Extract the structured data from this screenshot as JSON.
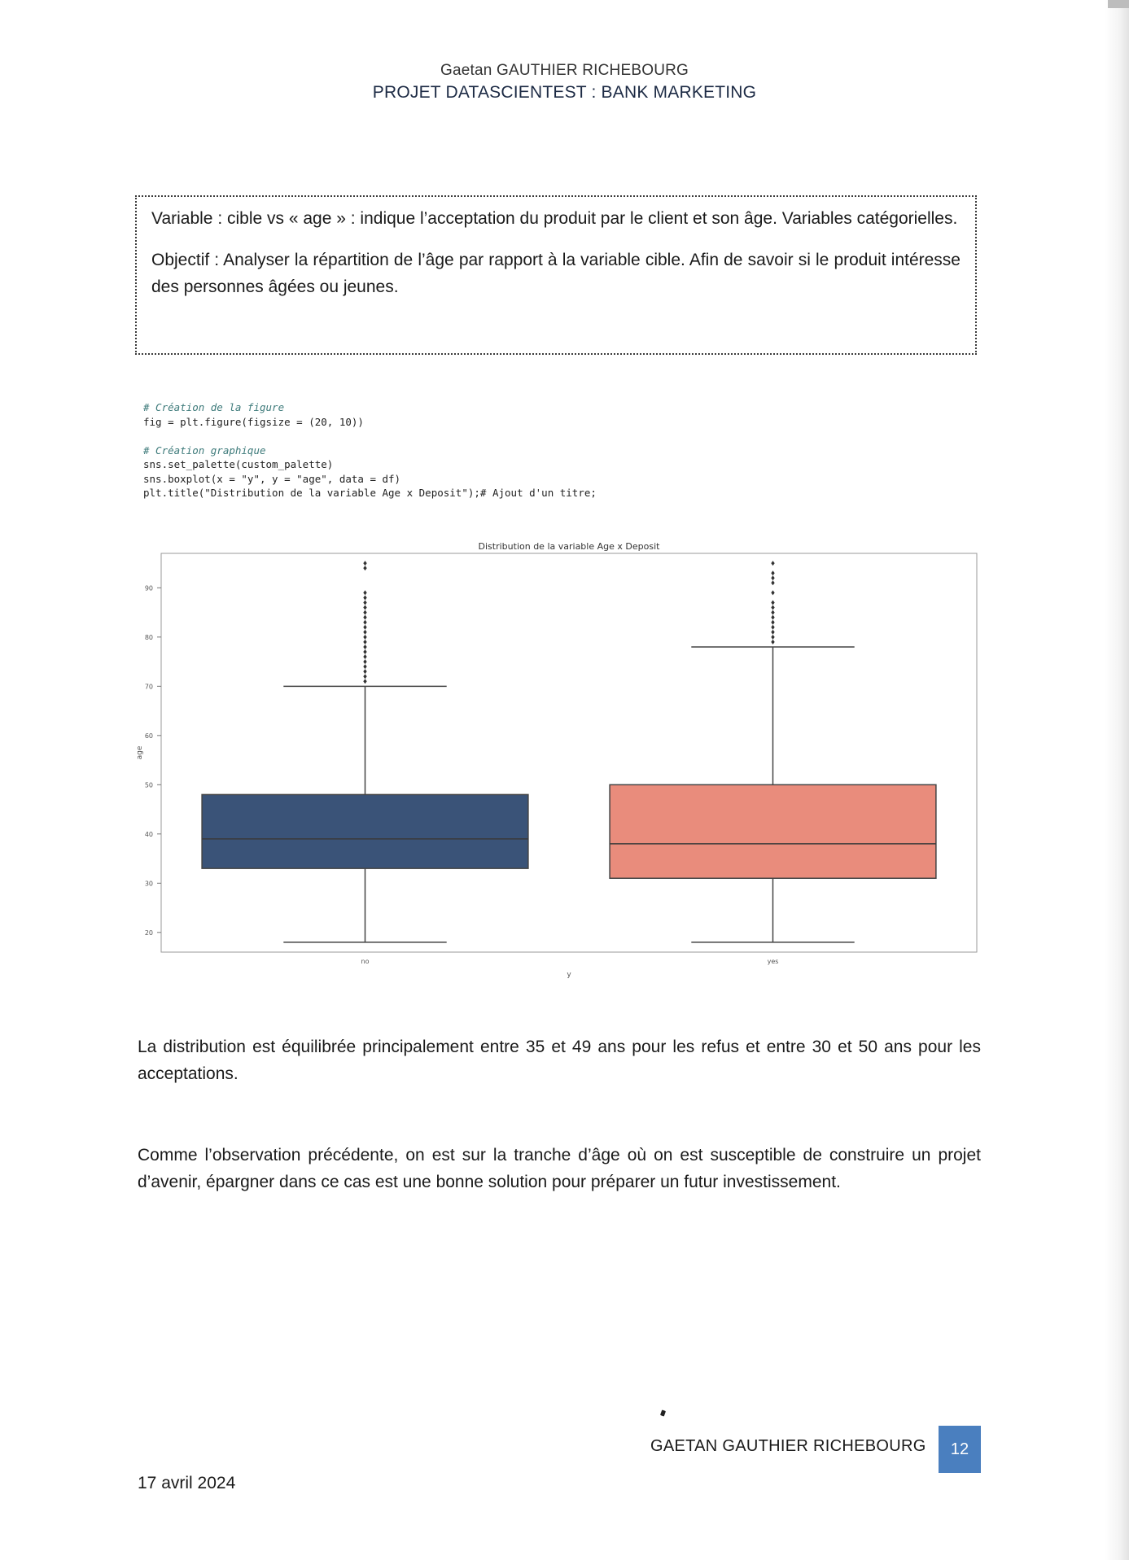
{
  "header": {
    "author": "Gaetan GAUTHIER RICHEBOURG",
    "project": "PROJET DATASCIENTEST : BANK MARKETING"
  },
  "box": {
    "variable_text": "Variable : cible vs « age » : indique l’acceptation du produit par le client et son âge. Variables catégorielles.",
    "objectif_text": "Objectif : Analyser la répartition de l’âge par rapport à la variable cible. Afin de savoir si le produit intéresse des personnes âgées ou jeunes."
  },
  "code": {
    "comment1": "# Création de la figure",
    "line1": "fig = plt.figure(figsize = (20, 10))",
    "comment2": "# Création graphique",
    "line2": "sns.set_palette(custom_palette)",
    "line3": "sns.boxplot(x = \"y\", y = \"age\", data = df)",
    "line4": "plt.title(\"Distribution de la variable Age x Deposit\");# Ajout d'un titre;"
  },
  "chart_data": {
    "type": "box",
    "title": "Distribution de la variable Age x Deposit",
    "xlabel": "y",
    "ylabel": "age",
    "ylim": [
      16,
      97
    ],
    "yticks": [
      20,
      30,
      40,
      50,
      60,
      70,
      80,
      90
    ],
    "grid": false,
    "series": [
      {
        "name": "no",
        "color": "#3a5378",
        "whisker_low": 18,
        "q1": 33,
        "median": 39,
        "q3": 48,
        "whisker_high": 70,
        "outliers": [
          71,
          72,
          73,
          74,
          75,
          76,
          77,
          78,
          79,
          80,
          81,
          82,
          83,
          84,
          85,
          86,
          87,
          88,
          89,
          94,
          95
        ]
      },
      {
        "name": "yes",
        "color": "#e98c7c",
        "whisker_low": 18,
        "q1": 31,
        "median": 38,
        "q3": 50,
        "whisker_high": 78,
        "outliers": [
          79,
          80,
          81,
          82,
          83,
          84,
          85,
          86,
          87,
          89,
          91,
          92,
          93,
          95
        ]
      }
    ]
  },
  "paragraphs": {
    "p1": "La distribution est équilibrée principalement entre 35 et 49 ans pour les refus et entre 30 et 50 ans pour les acceptations.",
    "p2": "Comme l’observation précédente, on est sur la tranche d’âge où on est susceptible de construire un projet d’avenir, épargner dans ce cas est une bonne solution pour préparer un futur investissement."
  },
  "footer": {
    "name": "GAETAN GAUTHIER RICHEBOURG",
    "page_number": "12",
    "date": "17 avril 2024"
  }
}
